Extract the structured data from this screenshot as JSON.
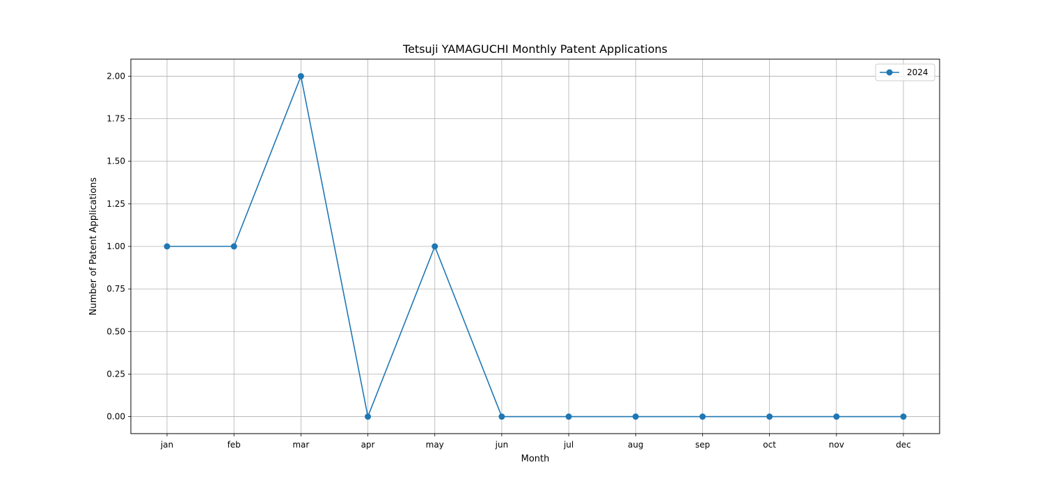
{
  "chart_data": {
    "type": "line",
    "title": "Tetsuji YAMAGUCHI Monthly Patent Applications",
    "xlabel": "Month",
    "ylabel": "Number of Patent Applications",
    "categories": [
      "jan",
      "feb",
      "mar",
      "apr",
      "may",
      "jun",
      "jul",
      "aug",
      "sep",
      "oct",
      "nov",
      "dec"
    ],
    "series": [
      {
        "name": "2024",
        "values": [
          1,
          1,
          2,
          0,
          1,
          0,
          0,
          0,
          0,
          0,
          0,
          0
        ],
        "color": "#1f77b4"
      }
    ],
    "ylim": [
      -0.1,
      2.1
    ],
    "yticks": [
      0,
      0.25,
      0.5,
      0.75,
      1.0,
      1.25,
      1.5,
      1.75,
      2.0
    ],
    "ytick_labels": [
      "0.00",
      "0.25",
      "0.50",
      "0.75",
      "1.00",
      "1.25",
      "1.50",
      "1.75",
      "2.00"
    ],
    "grid": true,
    "legend_position": "top-right",
    "grid_color": "#b0b0b0"
  }
}
